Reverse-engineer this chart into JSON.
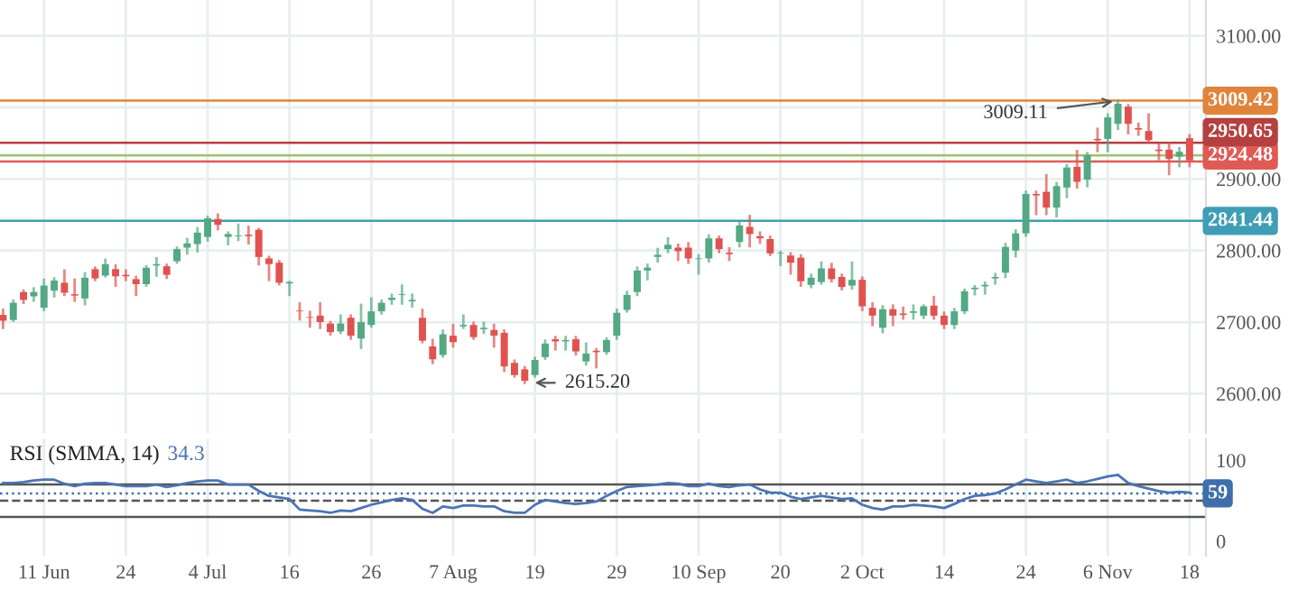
{
  "chart_data": [
    {
      "type": "candlestick",
      "tick_labels": "y",
      "grid": true,
      "categories": [
        null,
        null,
        null,
        null,
        "11 Jun",
        null,
        null,
        null,
        null,
        null,
        null,
        null,
        "24",
        null,
        null,
        null,
        null,
        null,
        null,
        null,
        "4 Jul",
        null,
        null,
        null,
        null,
        null,
        null,
        null,
        "16",
        null,
        null,
        null,
        null,
        null,
        null,
        null,
        "26",
        null,
        null,
        null,
        null,
        null,
        null,
        null,
        "7 Aug",
        null,
        null,
        null,
        null,
        null,
        null,
        null,
        "19",
        null,
        null,
        null,
        null,
        null,
        null,
        null,
        "29",
        null,
        null,
        null,
        null,
        null,
        null,
        null,
        "10 Sep",
        null,
        null,
        null,
        null,
        null,
        null,
        null,
        "20",
        null,
        null,
        null,
        null,
        null,
        null,
        null,
        "2 Oct",
        null,
        null,
        null,
        null,
        null,
        null,
        null,
        "14",
        null,
        null,
        null,
        null,
        null,
        null,
        null,
        "24",
        null,
        null,
        null,
        null,
        null,
        null,
        null,
        "6 Nov",
        null,
        null,
        null,
        null,
        null,
        null,
        null,
        "18"
      ],
      "ohlc": [
        [
          2710,
          2717,
          2692,
          2702
        ],
        [
          2703,
          2730,
          2702,
          2727
        ],
        [
          2742,
          2744,
          2727,
          2731
        ],
        [
          2736,
          2747,
          2730,
          2742
        ],
        [
          2720,
          2759,
          2717,
          2751
        ],
        [
          2744,
          2761,
          2736,
          2758
        ],
        [
          2755,
          2772,
          2738,
          2741
        ],
        [
          2739,
          2759,
          2730,
          2737
        ],
        [
          2733,
          2768,
          2725,
          2762
        ],
        [
          2774,
          2776,
          2759,
          2761
        ],
        [
          2765,
          2787,
          2764,
          2781
        ],
        [
          2774,
          2779,
          2751,
          2764
        ],
        [
          2766,
          2772,
          2759,
          2764
        ],
        [
          2760,
          2763,
          2738,
          2753
        ],
        [
          2753,
          2778,
          2751,
          2776
        ],
        [
          2779,
          2789,
          2765,
          2781
        ],
        [
          2778,
          2780,
          2762,
          2766
        ],
        [
          2785,
          2804,
          2783,
          2802
        ],
        [
          2804,
          2816,
          2796,
          2810
        ],
        [
          2809,
          2831,
          2799,
          2825
        ],
        [
          2819,
          2847,
          2814,
          2845
        ],
        [
          2844,
          2850,
          2830,
          2836
        ],
        [
          2819,
          2825,
          2809,
          2823
        ],
        [
          2820,
          2836,
          2815,
          2821
        ],
        [
          2822,
          2833,
          2810,
          2820
        ],
        [
          2829,
          2830,
          2781,
          2791
        ],
        [
          2789,
          2791,
          2759,
          2781
        ],
        [
          2783,
          2785,
          2753,
          2755
        ],
        [
          2754,
          2756,
          2738,
          2756
        ],
        [
          2716,
          2726,
          2704,
          2715
        ],
        [
          2707,
          2714,
          2694,
          2706
        ],
        [
          2709,
          2726,
          2692,
          2700
        ],
        [
          2698,
          2700,
          2683,
          2686
        ],
        [
          2687,
          2709,
          2685,
          2698
        ],
        [
          2706,
          2709,
          2677,
          2681
        ],
        [
          2677,
          2724,
          2664,
          2700
        ],
        [
          2696,
          2733,
          2694,
          2715
        ],
        [
          2715,
          2730,
          2712,
          2727
        ],
        [
          2731,
          2738,
          2726,
          2734
        ],
        [
          2738,
          2751,
          2726,
          2739
        ],
        [
          2729,
          2738,
          2722,
          2731
        ],
        [
          2706,
          2717,
          2672,
          2674
        ],
        [
          2666,
          2675,
          2643,
          2648
        ],
        [
          2654,
          2688,
          2652,
          2683
        ],
        [
          2681,
          2696,
          2666,
          2672
        ],
        [
          2694,
          2709,
          2692,
          2696
        ],
        [
          2696,
          2699,
          2677,
          2679
        ],
        [
          2690,
          2699,
          2685,
          2692
        ],
        [
          2689,
          2696,
          2666,
          2681
        ],
        [
          2685,
          2688,
          2632,
          2638
        ],
        [
          2643,
          2646,
          2624,
          2626
        ],
        [
          2634,
          2637,
          2615.2,
          2618
        ],
        [
          2626,
          2650,
          2624,
          2647
        ],
        [
          2651,
          2674,
          2649,
          2670
        ],
        [
          2676,
          2679,
          2662,
          2673
        ],
        [
          2673,
          2679,
          2662,
          2675
        ],
        [
          2676,
          2679,
          2655,
          2659
        ],
        [
          2645,
          2670,
          2641,
          2656
        ],
        [
          2660,
          2662,
          2637,
          2658
        ],
        [
          2658,
          2677,
          2656,
          2675
        ],
        [
          2681,
          2717,
          2677,
          2713
        ],
        [
          2717,
          2742,
          2715,
          2738
        ],
        [
          2742,
          2776,
          2738,
          2772
        ],
        [
          2772,
          2780,
          2760,
          2776
        ],
        [
          2791,
          2802,
          2785,
          2794
        ],
        [
          2802,
          2817,
          2798,
          2808
        ],
        [
          2804,
          2808,
          2787,
          2799
        ],
        [
          2804,
          2810,
          2783,
          2789
        ],
        [
          2788,
          2793,
          2768,
          2789
        ],
        [
          2789,
          2821,
          2785,
          2817
        ],
        [
          2817,
          2819,
          2798,
          2802
        ],
        [
          2797,
          2803,
          2787,
          2795
        ],
        [
          2812,
          2838,
          2806,
          2835
        ],
        [
          2833,
          2848,
          2806,
          2823
        ],
        [
          2820,
          2825,
          2811,
          2817
        ],
        [
          2816,
          2819,
          2794,
          2796
        ],
        [
          2796,
          2798,
          2780,
          2797
        ],
        [
          2793,
          2796,
          2768,
          2783
        ],
        [
          2790,
          2793,
          2751,
          2757
        ],
        [
          2752,
          2766,
          2749,
          2762
        ],
        [
          2756,
          2783,
          2754,
          2775
        ],
        [
          2775,
          2781,
          2757,
          2760
        ],
        [
          2763,
          2766,
          2746,
          2749
        ],
        [
          2751,
          2783,
          2747,
          2759
        ],
        [
          2759,
          2762,
          2717,
          2722
        ],
        [
          2720,
          2726,
          2696,
          2709
        ],
        [
          2692,
          2722,
          2686,
          2718
        ],
        [
          2718,
          2723,
          2696,
          2709
        ],
        [
          2712,
          2720,
          2705,
          2710
        ],
        [
          2713,
          2723,
          2705,
          2715
        ],
        [
          2709,
          2723,
          2706,
          2722
        ],
        [
          2723,
          2735,
          2705,
          2709
        ],
        [
          2709,
          2713,
          2692,
          2696
        ],
        [
          2696,
          2718,
          2692,
          2715
        ],
        [
          2715,
          2745,
          2713,
          2743
        ],
        [
          2746,
          2750,
          2739,
          2748
        ],
        [
          2750,
          2755,
          2740,
          2752
        ],
        [
          2761,
          2767,
          2754,
          2763
        ],
        [
          2769,
          2809,
          2763,
          2805
        ],
        [
          2800,
          2828,
          2792,
          2824
        ],
        [
          2824,
          2882,
          2821,
          2879
        ],
        [
          2879,
          2882,
          2851,
          2877
        ],
        [
          2882,
          2905,
          2851,
          2860
        ],
        [
          2860,
          2894,
          2848,
          2890
        ],
        [
          2888,
          2919,
          2875,
          2916
        ],
        [
          2917,
          2939,
          2888,
          2896
        ],
        [
          2899,
          2936,
          2890,
          2933
        ],
        [
          2956,
          2970,
          2939,
          2954
        ],
        [
          2956,
          2990,
          2939,
          2986
        ],
        [
          2977,
          3009.11,
          2970,
          3005
        ],
        [
          3001,
          3003,
          2964,
          2977
        ],
        [
          2971,
          2977,
          2962,
          2969
        ],
        [
          2967,
          2990,
          2952,
          2954
        ],
        [
          2941,
          2948,
          2928,
          2939
        ],
        [
          2941,
          2950,
          2907,
          2928
        ],
        [
          2931,
          2943,
          2918,
          2938
        ],
        [
          2957,
          2961,
          2918,
          2926
        ]
      ],
      "ylim": [
        2545,
        3150
      ],
      "yticks": [
        {
          "value": 2600,
          "label": "2600.00"
        },
        {
          "value": 2700,
          "label": "2700.00"
        },
        {
          "value": 2800,
          "label": "2800.00"
        },
        {
          "value": 2900,
          "label": "2900.00"
        },
        {
          "value": 3000,
          "label": null
        },
        {
          "value": 3100,
          "label": "3100.00"
        }
      ],
      "ref_lines": [
        {
          "axis": "y",
          "value": 3009.42,
          "label": "3009.42",
          "color": "#e0843c"
        },
        {
          "axis": "y",
          "value": 2950.65,
          "label": "2950.65",
          "color": "#b4403f"
        },
        {
          "axis": "y",
          "value": 2933,
          "color": "#9cc36a"
        },
        {
          "axis": "y",
          "value": 2924.48,
          "label": "2924.48",
          "color": "#e05a55"
        },
        {
          "axis": "y",
          "value": 2841.44,
          "label": "2841.44",
          "color": "#3f9db5"
        }
      ],
      "annotations": [
        {
          "text": "3009.11",
          "y": 3009.11
        },
        "2615.20"
      ]
    },
    {
      "type": "line",
      "title": "RSI (SMMA, 14)",
      "subtitle": "34.3",
      "grid": "x",
      "series": [
        {
          "color": "#4a74b5",
          "values": [
            72,
            72,
            73,
            75,
            76,
            76,
            71,
            68,
            71,
            72,
            72,
            70,
            68,
            68,
            68,
            70,
            67,
            69,
            72,
            74,
            75,
            75,
            70,
            70,
            70,
            62,
            56,
            54,
            52,
            39,
            38,
            37,
            35,
            38,
            37,
            41,
            45,
            48,
            51,
            53,
            51,
            40,
            35,
            43,
            41,
            44,
            44,
            43,
            43,
            37,
            35,
            35,
            45,
            51,
            49,
            47,
            46,
            47,
            49,
            56,
            62,
            67,
            68,
            69,
            70,
            72,
            71,
            68,
            68,
            71,
            68,
            67,
            69,
            70,
            64,
            60,
            60,
            55,
            52,
            54,
            56,
            54,
            52,
            53,
            45,
            41,
            39,
            43,
            43,
            45,
            44,
            43,
            41,
            46,
            52,
            56,
            57,
            59,
            64,
            70,
            76,
            74,
            72,
            74,
            76,
            72,
            74,
            77,
            80,
            82,
            72,
            68,
            65,
            62,
            60,
            61,
            60
          ]
        }
      ],
      "ylim": [
        -18,
        127
      ],
      "yticks": [
        0,
        100
      ],
      "ref_lines": [
        {
          "axis": "y",
          "value": 70,
          "color": "#555555",
          "line_style": "solid"
        },
        {
          "axis": "y",
          "value": 50,
          "color": "#555555",
          "line_style": "dashed"
        },
        {
          "axis": "y",
          "value": 30,
          "color": "#555555",
          "line_style": "solid"
        },
        {
          "axis": "y",
          "value": 59,
          "label": "59",
          "color": "#3f6fa8",
          "line_style": "dotted"
        }
      ]
    }
  ]
}
